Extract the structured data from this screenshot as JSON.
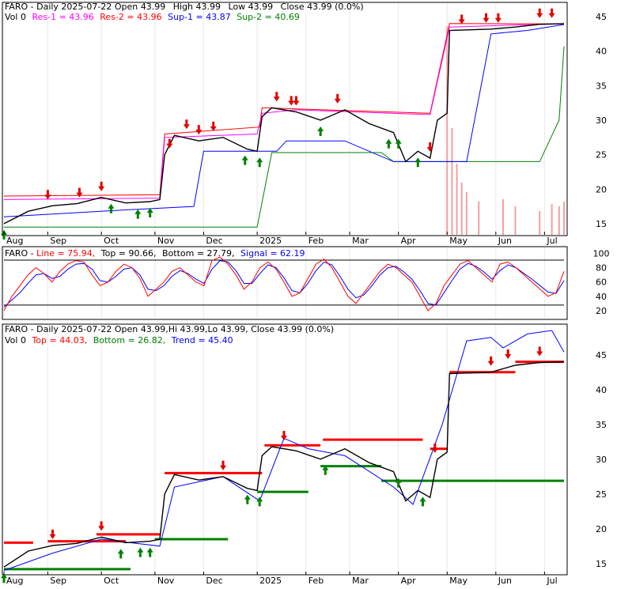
{
  "colors": {
    "res1": "#ff00ff",
    "res2": "#ff0000",
    "sup1": "#0000ff",
    "sup2": "#008000",
    "line": "#ff0000",
    "top": "#000000",
    "bottom": "#000000",
    "signal": "#0000ff",
    "trend": "#0000ff",
    "volume": "#f4a0a0",
    "buy": "#008000",
    "sell": "#e00000",
    "bottom_label": "#008000",
    "top_label": "#ff0000"
  },
  "months": [
    "Aug",
    "Sep",
    "Oct",
    "Nov",
    "Dec",
    "2025",
    "Feb",
    "Mar",
    "Apr",
    "May",
    "Jun",
    "Jul"
  ],
  "chart_data": [
    {
      "type": "line",
      "panel": "price-support-resistance",
      "header": {
        "line1_symbol": "FARO - Daily 2025-07-22 Open 43.99",
        "line1_high": "High 43.99",
        "line1_low": "Low 43.99",
        "line1_close": "Close 43.99 (0.0%)",
        "vol": "Vol 0",
        "res1": "Res-1 = 43.96",
        "res2": "Res-2 = 43.96",
        "sup1": "Sup-1 = 43.87",
        "sup2": "Sup-2 = 40.69"
      },
      "y_ticks": [
        "45",
        "40",
        "35",
        "30",
        "25",
        "20",
        "15"
      ],
      "ylim": [
        13.5,
        46.5
      ],
      "price": [
        [
          0,
          15.0
        ],
        [
          10,
          16.8
        ],
        [
          20,
          17.6
        ],
        [
          30,
          17.9
        ],
        [
          40,
          18.8
        ],
        [
          50,
          18.0
        ],
        [
          60,
          18.2
        ],
        [
          64,
          18.5
        ],
        [
          66,
          25.0
        ],
        [
          70,
          27.8
        ],
        [
          80,
          27.0
        ],
        [
          90,
          27.5
        ],
        [
          100,
          25.8
        ],
        [
          104,
          25.5
        ],
        [
          106,
          30.5
        ],
        [
          110,
          31.8
        ],
        [
          120,
          31.2
        ],
        [
          130,
          30.0
        ],
        [
          140,
          31.5
        ],
        [
          150,
          29.5
        ],
        [
          160,
          28.2
        ],
        [
          165,
          24.0
        ],
        [
          170,
          25.5
        ],
        [
          175,
          24.5
        ],
        [
          178,
          30.0
        ],
        [
          182,
          31.0
        ],
        [
          183,
          43.0
        ],
        [
          200,
          43.2
        ],
        [
          210,
          43.5
        ],
        [
          220,
          43.9
        ],
        [
          230,
          43.99
        ]
      ],
      "res1": [
        [
          0,
          18.5
        ],
        [
          64,
          18.7
        ],
        [
          66,
          27.5
        ],
        [
          104,
          28.0
        ],
        [
          106,
          31.0
        ],
        [
          120,
          31.5
        ],
        [
          175,
          30.8
        ],
        [
          183,
          43.5
        ],
        [
          210,
          43.8
        ],
        [
          230,
          43.96
        ]
      ],
      "res2": [
        [
          0,
          19.0
        ],
        [
          64,
          19.2
        ],
        [
          66,
          28.0
        ],
        [
          105,
          29.0
        ],
        [
          106,
          31.8
        ],
        [
          175,
          31.0
        ],
        [
          183,
          44.0
        ],
        [
          230,
          43.96
        ]
      ],
      "sup1": [
        [
          0,
          16.0
        ],
        [
          50,
          17.0
        ],
        [
          78,
          17.5
        ],
        [
          82,
          25.5
        ],
        [
          104,
          25.5
        ],
        [
          112,
          25.5
        ],
        [
          116,
          27.0
        ],
        [
          140,
          27.0
        ],
        [
          160,
          24.0
        ],
        [
          190,
          24.0
        ],
        [
          200,
          42.5
        ],
        [
          215,
          43.0
        ],
        [
          230,
          43.87
        ]
      ],
      "sup2": [
        [
          0,
          14.5
        ],
        [
          55,
          14.5
        ],
        [
          104,
          14.5
        ],
        [
          110,
          25.3
        ],
        [
          155,
          25.3
        ],
        [
          160,
          24.0
        ],
        [
          220,
          24.0
        ],
        [
          228,
          30.0
        ],
        [
          230,
          40.69
        ]
      ],
      "volume": [
        [
          182,
          88
        ],
        [
          184,
          45
        ],
        [
          186,
          30
        ],
        [
          188,
          22
        ],
        [
          190,
          18
        ],
        [
          195,
          14
        ],
        [
          205,
          15
        ],
        [
          210,
          12
        ],
        [
          220,
          10
        ],
        [
          225,
          13
        ],
        [
          228,
          12
        ],
        [
          230,
          14
        ]
      ],
      "sell_signals": [
        18,
        31,
        40,
        68,
        75,
        80,
        86,
        112,
        118,
        120,
        137,
        175,
        188,
        198,
        203,
        220,
        225
      ],
      "buy_signals": [
        0,
        44,
        55,
        60,
        99,
        105,
        130,
        158,
        162,
        170
      ]
    },
    {
      "type": "line",
      "panel": "stochastic",
      "header": {
        "symbol": "FARO - ",
        "line": "Line = 75.94,",
        "top": "Top = 90.66,",
        "bottom": "Bottom = 27.79,",
        "signal": "Signal = 62.19"
      },
      "y_ticks": [
        "100",
        "80",
        "60",
        "40",
        "20"
      ],
      "ylim": [
        10,
        105
      ],
      "line_values": [
        20,
        40,
        55,
        70,
        80,
        72,
        60,
        75,
        85,
        90,
        88,
        70,
        55,
        60,
        75,
        85,
        80,
        65,
        40,
        50,
        60,
        75,
        80,
        70,
        60,
        55,
        90,
        95,
        85,
        70,
        50,
        60,
        80,
        88,
        78,
        60,
        40,
        45,
        65,
        85,
        92,
        80,
        60,
        40,
        30,
        45,
        60,
        75,
        85,
        80,
        70,
        60,
        40,
        20,
        30,
        55,
        70,
        85,
        90,
        80,
        70,
        60,
        85,
        88,
        80,
        70,
        60,
        50,
        40,
        45,
        75
      ],
      "signal_values": [
        25,
        35,
        45,
        58,
        70,
        72,
        65,
        68,
        78,
        85,
        86,
        78,
        62,
        60,
        68,
        78,
        80,
        70,
        50,
        48,
        55,
        68,
        76,
        72,
        64,
        58,
        78,
        90,
        88,
        76,
        58,
        58,
        72,
        84,
        80,
        66,
        48,
        45,
        58,
        76,
        88,
        84,
        68,
        50,
        38,
        42,
        55,
        70,
        80,
        82,
        74,
        64,
        48,
        30,
        28,
        45,
        62,
        78,
        86,
        82,
        74,
        64,
        76,
        84,
        80,
        72,
        64,
        55,
        46,
        44,
        62
      ],
      "top": 90.66,
      "bottom": 27.79
    },
    {
      "type": "line",
      "panel": "price-trend",
      "header": {
        "line1": "FARO - Daily 2025-07-22 Open 43.99,Hi 43.99,Lo 43.99, Close 43.99 (0.0%)",
        "vol": "Vol 0",
        "top": "Top = 44.03,",
        "bottom": "Bottom = 26.82,",
        "trend": "Trend = 45.40"
      },
      "y_ticks": [
        "45",
        "40",
        "35",
        "30",
        "25",
        "20",
        "15"
      ],
      "ylim": [
        13.5,
        48.5
      ],
      "price": [
        [
          0,
          14.5
        ],
        [
          10,
          16.8
        ],
        [
          20,
          17.6
        ],
        [
          30,
          17.9
        ],
        [
          40,
          18.8
        ],
        [
          50,
          18.0
        ],
        [
          60,
          18.2
        ],
        [
          64,
          18.5
        ],
        [
          66,
          25.0
        ],
        [
          70,
          27.8
        ],
        [
          80,
          27.0
        ],
        [
          90,
          27.5
        ],
        [
          100,
          25.8
        ],
        [
          104,
          25.5
        ],
        [
          106,
          30.5
        ],
        [
          110,
          31.8
        ],
        [
          120,
          31.2
        ],
        [
          130,
          30.0
        ],
        [
          140,
          31.5
        ],
        [
          150,
          29.5
        ],
        [
          160,
          28.2
        ],
        [
          165,
          24.0
        ],
        [
          170,
          25.5
        ],
        [
          175,
          24.5
        ],
        [
          178,
          30.0
        ],
        [
          182,
          31.0
        ],
        [
          183,
          42.3
        ],
        [
          200,
          42.5
        ],
        [
          210,
          43.5
        ],
        [
          220,
          43.9
        ],
        [
          230,
          43.99
        ]
      ],
      "trend": [
        [
          0,
          14.0
        ],
        [
          20,
          16.5
        ],
        [
          40,
          18.5
        ],
        [
          64,
          17.5
        ],
        [
          70,
          26.0
        ],
        [
          90,
          27.5
        ],
        [
          105,
          24.0
        ],
        [
          115,
          33.0
        ],
        [
          125,
          31.5
        ],
        [
          140,
          30.5
        ],
        [
          160,
          26.0
        ],
        [
          168,
          23.5
        ],
        [
          180,
          35.0
        ],
        [
          190,
          47.0
        ],
        [
          200,
          47.5
        ],
        [
          205,
          46.0
        ],
        [
          215,
          48.0
        ],
        [
          225,
          48.5
        ],
        [
          230,
          45.4
        ]
      ],
      "resistance_segments": [
        [
          0,
          12,
          18
        ],
        [
          18,
          50,
          18.2
        ],
        [
          38,
          64,
          19.2
        ],
        [
          66,
          106,
          28.0
        ],
        [
          107,
          130,
          32.0
        ],
        [
          131,
          172,
          32.8
        ],
        [
          175,
          182,
          31.5
        ],
        [
          183,
          210,
          42.5
        ],
        [
          210,
          230,
          44.0
        ]
      ],
      "support_segments": [
        [
          0,
          52,
          14.2
        ],
        [
          62,
          92,
          18.5
        ],
        [
          104,
          125,
          25.3
        ],
        [
          130,
          155,
          29.0
        ],
        [
          155,
          230,
          26.9
        ]
      ],
      "sell_signals": [
        20,
        40,
        90,
        115,
        177,
        200,
        207,
        220
      ],
      "buy_signals": [
        0,
        48,
        56,
        60,
        100,
        105,
        132,
        162,
        172
      ]
    }
  ]
}
